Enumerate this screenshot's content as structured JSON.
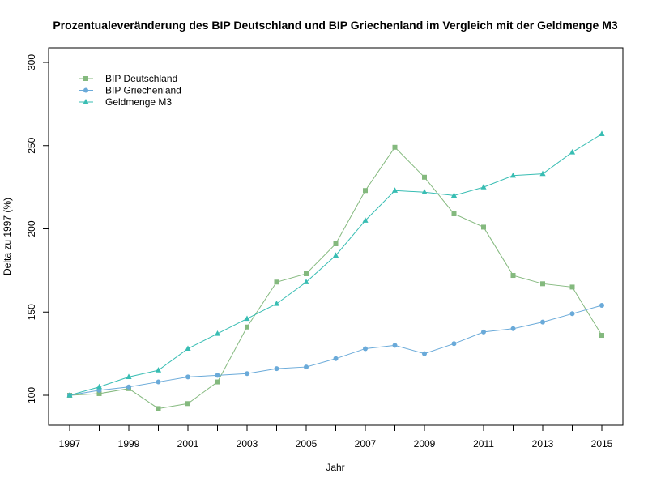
{
  "chart_data": {
    "type": "line",
    "title": "Prozentualeveränderung des BIP Deutschland und BIP Griechenland im Vergleich mit der Geldmenge M3",
    "xlabel": "Jahr",
    "ylabel": "Delta zu 1997 (%)",
    "xlim": [
      1997,
      2015
    ],
    "ylim": [
      100,
      300
    ],
    "x_ticks": [
      1997,
      1998,
      1999,
      2000,
      2001,
      2002,
      2003,
      2004,
      2005,
      2006,
      2007,
      2008,
      2009,
      2010,
      2011,
      2012,
      2013,
      2014,
      2015
    ],
    "x_tick_labels": [
      "1997",
      "",
      "1999",
      "",
      "2001",
      "",
      "2003",
      "",
      "2005",
      "",
      "2007",
      "",
      "2009",
      "",
      "2011",
      "",
      "2013",
      "",
      "2015"
    ],
    "y_ticks": [
      100,
      150,
      200,
      250,
      300
    ],
    "y_tick_labels": [
      "100",
      "150",
      "200",
      "250",
      "300"
    ],
    "grid": false,
    "legend_position": "top-left",
    "x": [
      1997,
      1998,
      1999,
      2000,
      2001,
      2002,
      2003,
      2004,
      2005,
      2006,
      2007,
      2008,
      2009,
      2010,
      2011,
      2012,
      2013,
      2014,
      2015
    ],
    "series": [
      {
        "name": "BIP Deutschland",
        "color": "#84b97e",
        "marker": "square",
        "values": [
          100,
          101,
          104,
          92,
          95,
          108,
          141,
          168,
          173,
          191,
          223,
          249,
          231,
          209,
          201,
          172,
          167,
          165,
          136
        ]
      },
      {
        "name": "BIP Griechenland",
        "color": "#6aaad9",
        "marker": "circle",
        "values": [
          100,
          103,
          105,
          108,
          111,
          112,
          113,
          116,
          117,
          122,
          128,
          130,
          125,
          131,
          138,
          140,
          144,
          149,
          154
        ]
      },
      {
        "name": "Geldmenge M3",
        "color": "#38bdb3",
        "marker": "triangle",
        "values": [
          100,
          105,
          111,
          115,
          128,
          137,
          146,
          155,
          168,
          184,
          205,
          223,
          222,
          220,
          225,
          232,
          233,
          246,
          257
        ]
      }
    ]
  }
}
